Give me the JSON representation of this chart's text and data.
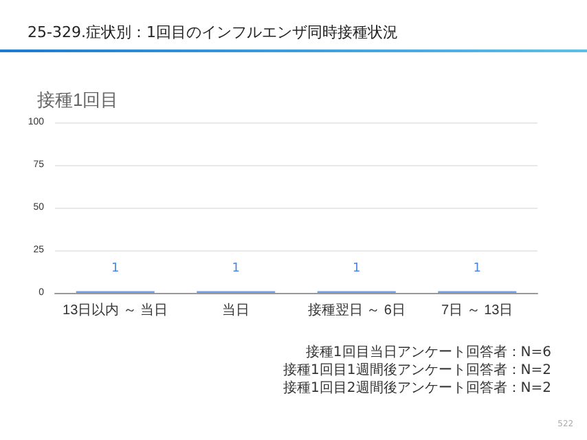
{
  "chart_data": {
    "type": "bar",
    "title": "25-329.症状別：1回目のインフルエンザ同時接種状況",
    "subtitle": "接種1回目",
    "categories": [
      "13日以内 ～ 当日",
      "当日",
      "接種翌日 ～ 6日",
      "7日 ～ 13日"
    ],
    "values": [
      1,
      1,
      1,
      1
    ],
    "color": "#6d9eeb",
    "data_labels": true,
    "ylim": [
      0,
      100
    ],
    "yticks": [
      0,
      25,
      50,
      75,
      100
    ],
    "grid": "y",
    "annotations": [
      "接種1回目当日アンケート回答者：N=6",
      "接種1回目1週間後アンケート回答者：N=2",
      "接種1回目2週間後アンケート回答者：N=2",
      "522"
    ]
  }
}
